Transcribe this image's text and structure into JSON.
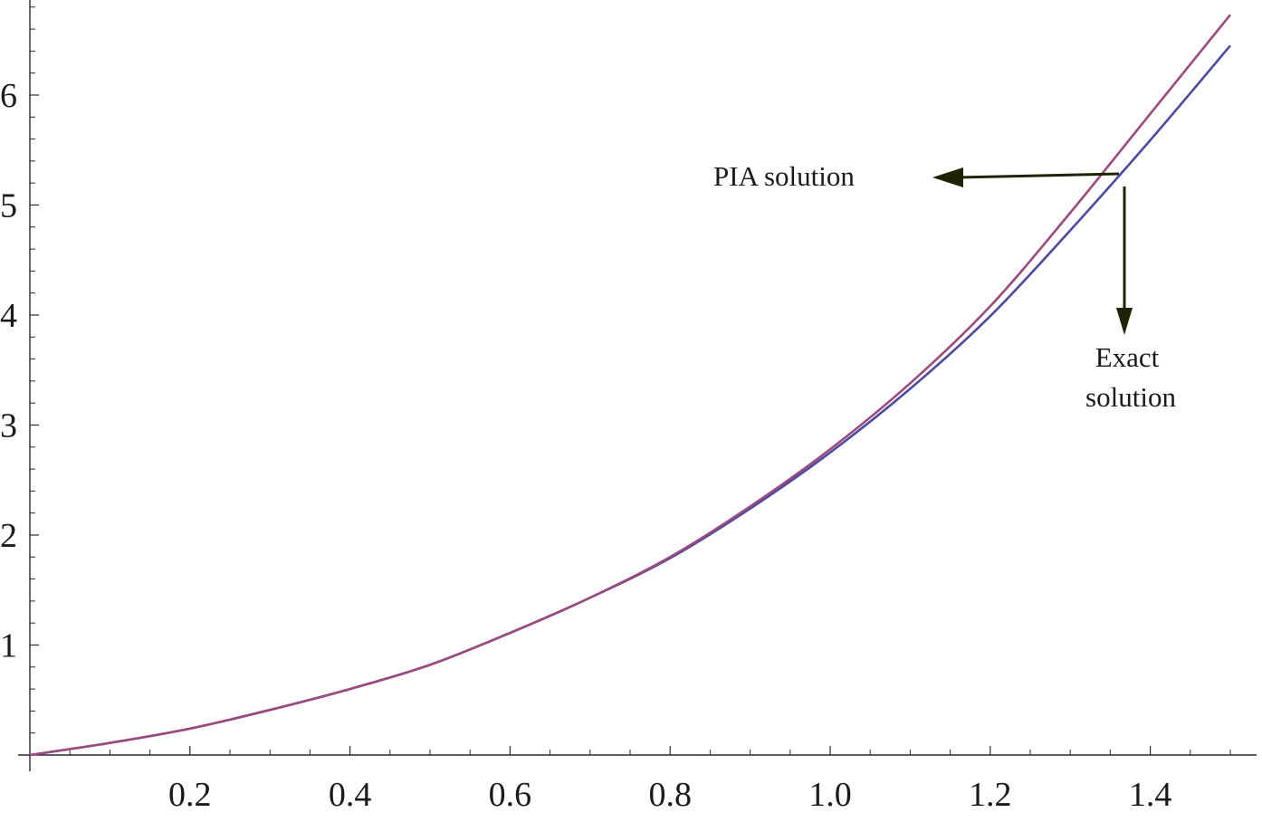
{
  "chart_data": {
    "type": "line",
    "title": "",
    "xlabel": "",
    "ylabel": "",
    "xlim": [
      0,
      1.5
    ],
    "ylim": [
      0,
      6.7
    ],
    "grid": false,
    "x_ticks": [
      0.2,
      0.4,
      0.6,
      0.8,
      1.0,
      1.2,
      1.4
    ],
    "x_tick_labels": [
      "0.2",
      "0.4",
      "0.6",
      "0.8",
      "1.0",
      "1.2",
      "1.4"
    ],
    "y_ticks": [
      1,
      2,
      3,
      4,
      5,
      6
    ],
    "y_tick_labels": [
      "1",
      "2",
      "3",
      "4",
      "5",
      "6"
    ],
    "x": [
      0,
      0.1,
      0.2,
      0.3,
      0.4,
      0.5,
      0.6,
      0.7,
      0.8,
      0.9,
      1.0,
      1.1,
      1.2,
      1.3,
      1.4,
      1.5
    ],
    "series": [
      {
        "name": "PIA solution",
        "color": "#9b4a7e",
        "values": [
          0,
          0.11,
          0.24,
          0.41,
          0.6,
          0.82,
          1.11,
          1.43,
          1.8,
          2.26,
          2.78,
          3.38,
          4.08,
          4.93,
          5.83,
          6.73
        ]
      },
      {
        "name": "Exact solution",
        "color": "#4a4aa0",
        "values": [
          0,
          0.11,
          0.24,
          0.41,
          0.6,
          0.82,
          1.11,
          1.43,
          1.79,
          2.24,
          2.75,
          3.33,
          3.99,
          4.77,
          5.59,
          6.45
        ]
      }
    ],
    "annotations": [
      {
        "text": "PIA solution",
        "points_to": "PIA solution",
        "arrow_direction": "left"
      },
      {
        "text": "Exact\nsolution",
        "lines": [
          "Exact",
          "solution"
        ],
        "points_to": "Exact solution",
        "arrow_direction": "down"
      }
    ]
  }
}
